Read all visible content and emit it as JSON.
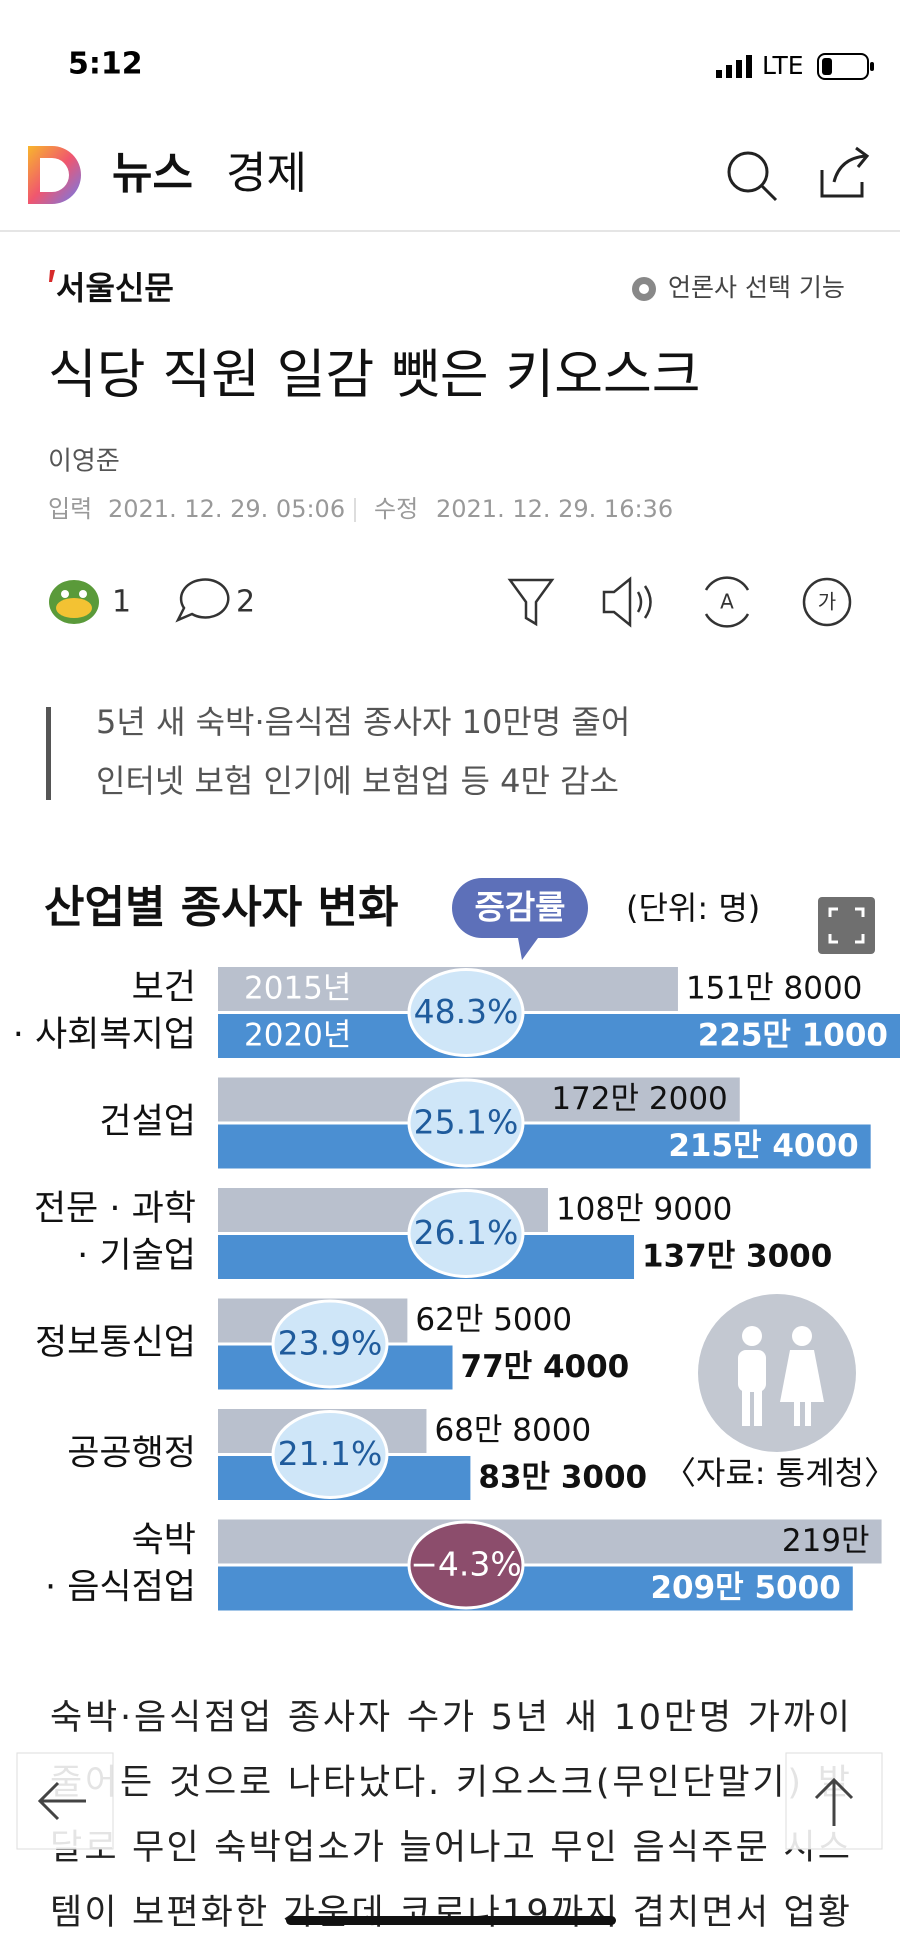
{
  "status_bar": {
    "time": "5:12",
    "network": "LTE"
  },
  "app_bar": {
    "section": "뉴스",
    "category": "경제"
  },
  "article": {
    "publisher": "서울신문",
    "publisher_setting": "언론사 선택 기능",
    "title": "식당 직원 일감 뺏은 키오스크",
    "author": "이영준",
    "published_label": "입력",
    "published": "2021. 12. 29. 05:06",
    "modified_label": "수정",
    "modified": "2021. 12. 29. 16:36",
    "reactions": 1,
    "comments": 2,
    "summary": [
      "5년 새 숙박·음식점 종사자 10만명 줄어",
      "인터넷 보험 인기에 보험업 등 4만 감소"
    ],
    "body": [
      "숙박·음식점업 종사자 수가 5년 새 10만명 가까이",
      "줄어든 것으로 나타났다. 키오스크(무인단말기) 발",
      "달로 무인 숙박업소가 늘어나고 무인 음식주문 시스",
      "템이 보편화한 가운데 코로나19까지 겹치면서 업황"
    ]
  },
  "chart_data": {
    "type": "bar",
    "orientation": "horizontal",
    "title": "산업별 종사자 변화",
    "badge": "증감률",
    "unit": "(단위: 명)",
    "source": "〈자료: 통계청〉",
    "categories": [
      [
        "보건",
        "· 사회복지업"
      ],
      [
        "건설업"
      ],
      [
        "전문 · 과학",
        "· 기술업"
      ],
      [
        "정보통신업"
      ],
      [
        "공공행정"
      ],
      [
        "숙박",
        "· 음식점업"
      ]
    ],
    "series": [
      {
        "name": "2015년",
        "color": "#b9c0cd",
        "values": [
          1518000,
          1722000,
          1089000,
          625000,
          688000,
          2190000
        ],
        "value_labels": [
          "151만 8000",
          "172만 2000",
          "108만 9000",
          "62만 5000",
          "68만 8000",
          "219만"
        ]
      },
      {
        "name": "2020년",
        "color": "#4b8fd2",
        "values": [
          2251000,
          2154000,
          1373000,
          774000,
          833000,
          2095000
        ],
        "value_labels": [
          "225만 1000",
          "215만 4000",
          "137만 3000",
          "77만 4000",
          "83만 3000",
          "209만 5000"
        ]
      }
    ],
    "change": {
      "values": [
        48.3,
        25.1,
        26.1,
        23.9,
        21.1,
        -4.3
      ],
      "value_labels": [
        "48.3%",
        "25.1%",
        "26.1%",
        "23.9%",
        "21.1%",
        "−4.3%"
      ],
      "color": "#cfe6f8",
      "negative_color": "#8c4d6c"
    }
  }
}
